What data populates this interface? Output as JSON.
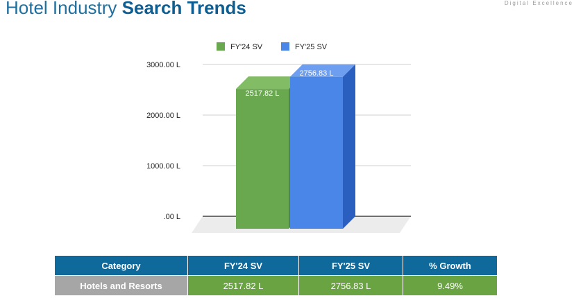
{
  "header": {
    "title_regular": "Hotel Industry ",
    "title_bold": "Search Trends",
    "tagline": "Digital Excellence"
  },
  "chart_data": {
    "type": "bar",
    "categories": [
      "Hotels and Resorts"
    ],
    "series": [
      {
        "name": "FY'24 SV",
        "values": [
          2517.82
        ],
        "label": "2517.82 L",
        "color": "#6aa84f",
        "side_color": "#4e8a37",
        "top_color": "#82bd66"
      },
      {
        "name": "FY'25 SV",
        "values": [
          2756.83
        ],
        "label": "2756.83 L",
        "color": "#4a86e8",
        "side_color": "#2b5fbf",
        "top_color": "#6d9ef0"
      }
    ],
    "ylim": [
      0,
      3000
    ],
    "yticks": [
      {
        "value": 0,
        "label": ".00 L"
      },
      {
        "value": 1000,
        "label": "1000.00 L"
      },
      {
        "value": 2000,
        "label": "2000.00 L"
      },
      {
        "value": 3000,
        "label": "3000.00 L"
      }
    ],
    "legend_position": "top",
    "grid": true,
    "three_d": true
  },
  "table": {
    "headers": [
      "Category",
      "FY'24 SV",
      "FY'25 SV",
      "% Growth"
    ],
    "rows": [
      [
        "Hotels and Resorts",
        "2517.82 L",
        "2756.83 L",
        "9.49%"
      ]
    ],
    "header_color": "#0f6a9b",
    "category_color": "#a6a6a6",
    "value_color": "#6aa342"
  }
}
